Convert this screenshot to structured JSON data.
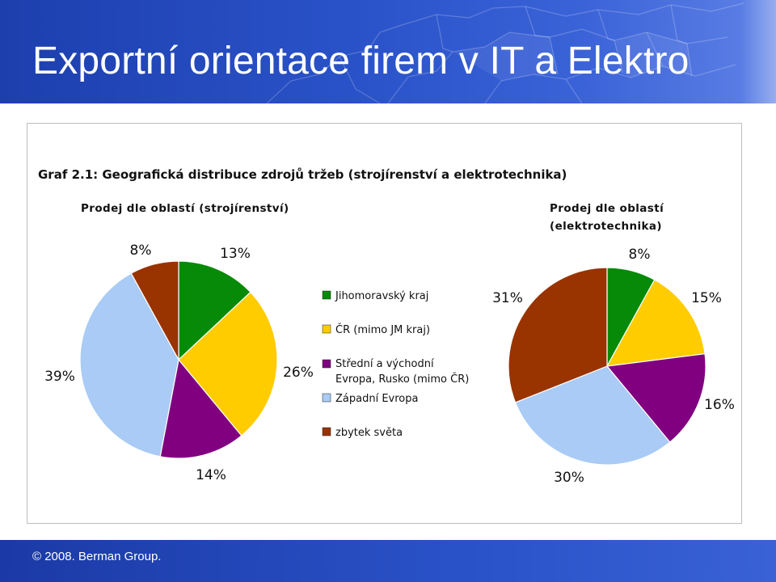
{
  "header": {
    "title": "Exportní orientace firem v IT a Elektro"
  },
  "footer": {
    "copyright": "© 2008. Berman Group."
  },
  "colors": {
    "header": "#2a52c8",
    "footer": "#2a52c8"
  },
  "chart_data": {
    "title": "Graf 2.1: Geografická distribuce zdrojů tržeb (strojírenství a elektrotechnika)",
    "legend": [
      {
        "label": "Jihomoravský kraj",
        "color": "#078a07"
      },
      {
        "label": "ČR (mimo JM kraj)",
        "color": "#ffcc00"
      },
      {
        "label_lines": [
          "Střední a východní",
          "Evropa, Rusko (mimo ČR)"
        ],
        "color": "#800080"
      },
      {
        "label": "Západní Evropa",
        "color": "#a9cbf5"
      },
      {
        "label": "zbytek světa",
        "color": "#993300"
      }
    ],
    "charts": [
      {
        "type": "pie",
        "title": "Prodej dle oblastí (strojírenství)",
        "series": [
          {
            "category": "Jihomoravský kraj",
            "value": 13,
            "label": "13%"
          },
          {
            "category": "ČR (mimo JM kraj)",
            "value": 26,
            "label": "26%"
          },
          {
            "category": "Střední a východní Evropa, Rusko (mimo ČR)",
            "value": 14,
            "label": "14%"
          },
          {
            "category": "Západní Evropa",
            "value": 39,
            "label": "39%"
          },
          {
            "category": "zbytek světa",
            "value": 8,
            "label": "8%"
          }
        ]
      },
      {
        "type": "pie",
        "title_lines": [
          "Prodej dle oblastí",
          "(elektrotechnika)"
        ],
        "series": [
          {
            "category": "Jihomoravský kraj",
            "value": 8,
            "label": "8%"
          },
          {
            "category": "ČR (mimo JM kraj)",
            "value": 15,
            "label": "15%"
          },
          {
            "category": "Střední a východní Evropa, Rusko (mimo ČR)",
            "value": 16,
            "label": "16%"
          },
          {
            "category": "Západní Evropa",
            "value": 30,
            "label": "30%"
          },
          {
            "category": "zbytek světa",
            "value": 31,
            "label": "31%"
          }
        ]
      }
    ]
  }
}
